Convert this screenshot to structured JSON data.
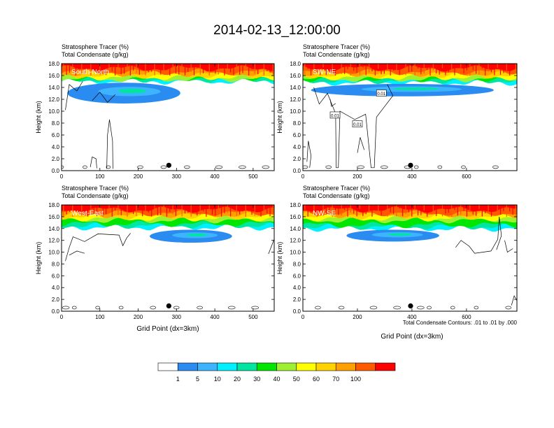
{
  "title": "2014-02-13_12:00:00",
  "chart_data": [
    {
      "type": "heatmap",
      "label": "South-North",
      "top_titles": [
        "Stratosphere Tracer   (%)",
        "Total Condensate   (g/kg)"
      ],
      "ylabel": "Height (km)",
      "xlabel": "",
      "xlim": [
        0,
        555
      ],
      "xticks": [
        0,
        100,
        200,
        300,
        400,
        500
      ],
      "ylim": [
        0,
        18
      ],
      "yticks": [
        "0.0",
        "2.0",
        "4.0",
        "6.0",
        "8.0",
        "10.0",
        "12.0",
        "14.0",
        "16.0",
        "18.0"
      ],
      "marker_x": 280,
      "tracer_low_edge_km": 15.0,
      "blue_zone": {
        "x_range": [
          15,
          310
        ],
        "km_range": [
          11.3,
          14.8
        ]
      },
      "contour_labels": []
    },
    {
      "type": "heatmap",
      "label": "SW-NE",
      "top_titles": [
        "Stratosphere Tracer   (%)",
        "Total Condensate   (g/kg)"
      ],
      "ylabel": "Height (km)",
      "xlabel": "",
      "xlim": [
        0,
        785
      ],
      "xticks": [
        0,
        200,
        400,
        600
      ],
      "ylim": [
        0,
        18
      ],
      "yticks": [
        "0.0",
        "2.0",
        "4.0",
        "6.0",
        "8.0",
        "10.0",
        "12.0",
        "14.0",
        "16.0",
        "18.0"
      ],
      "marker_x": 395,
      "tracer_low_edge_km": 14.8,
      "blue_zone": {
        "x_range": [
          30,
          700
        ],
        "km_range": [
          12.5,
          14.6
        ]
      },
      "contour_labels": [
        {
          "text": "0.01",
          "x": 118,
          "km": 9.3
        },
        {
          "text": "0.01",
          "x": 200,
          "km": 7.8
        },
        {
          "text": "0.01",
          "x": 288,
          "km": 13.0
        }
      ]
    },
    {
      "type": "heatmap",
      "label": "West-East",
      "top_titles": [
        "Stratosphere Tracer   (%)",
        "Total Condensate   (g/kg)"
      ],
      "ylabel": "Height (km)",
      "xlabel": "Grid Point (dx=3km)",
      "xlim": [
        0,
        555
      ],
      "xticks": [
        0,
        100,
        200,
        300,
        400,
        500
      ],
      "ylim": [
        0,
        18
      ],
      "yticks": [
        "0.0",
        "2.0",
        "4.0",
        "6.0",
        "8.0",
        "10.0",
        "12.0",
        "14.0",
        "16.0",
        "18.0"
      ],
      "marker_x": 280,
      "tracer_low_edge_km": 14.2,
      "blue_zone": {
        "x_range": [
          230,
          445
        ],
        "km_range": [
          11.6,
          13.8
        ]
      },
      "contour_labels": []
    },
    {
      "type": "heatmap",
      "label": "NW-SE",
      "top_titles": [
        "Stratosphere Tracer   (%)",
        "Total Condensate   (g/kg)"
      ],
      "ylabel": "Height (km)",
      "xlabel": "Grid Point (dx=3km)",
      "xlim": [
        0,
        785
      ],
      "xticks": [
        0,
        200,
        400,
        600
      ],
      "ylim": [
        0,
        18
      ],
      "yticks": [
        "0.0",
        "2.0",
        "4.0",
        "6.0",
        "8.0",
        "10.0",
        "12.0",
        "14.0",
        "16.0",
        "18.0"
      ],
      "marker_x": 395,
      "tracer_low_edge_km": 14.0,
      "blue_zone": {
        "x_range": [
          160,
          500
        ],
        "km_range": [
          11.8,
          13.8
        ]
      },
      "contour_labels": []
    }
  ],
  "contour_note": "Total Condensate Contours: .01 to .01 by .000",
  "colorbar": {
    "colors": [
      "#ffffff",
      "#2a8cf0",
      "#3cb4ff",
      "#00f0ff",
      "#00e6a0",
      "#00e600",
      "#a0f032",
      "#ffff00",
      "#ffd200",
      "#ffa000",
      "#ff5a00",
      "#ff0000"
    ],
    "labels": [
      "1",
      "5",
      "10",
      "20",
      "30",
      "40",
      "50",
      "60",
      "70",
      "100"
    ]
  }
}
